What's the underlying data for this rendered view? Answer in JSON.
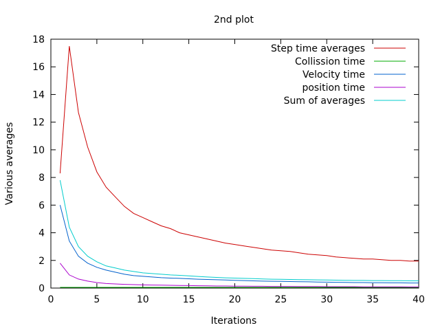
{
  "chart_data": {
    "type": "line",
    "title": "2nd plot",
    "xlabel": "Iterations",
    "ylabel": "Various averages",
    "xlim": [
      0,
      40
    ],
    "ylim": [
      0,
      18
    ],
    "xticks": [
      0,
      5,
      10,
      15,
      20,
      25,
      30,
      35,
      40
    ],
    "yticks": [
      0,
      2,
      4,
      6,
      8,
      10,
      12,
      14,
      16,
      18
    ],
    "legend_position": "top-right",
    "grid": false,
    "x": [
      1,
      2,
      3,
      4,
      5,
      6,
      7,
      8,
      9,
      10,
      11,
      12,
      13,
      14,
      15,
      16,
      17,
      18,
      19,
      20,
      21,
      22,
      23,
      24,
      25,
      26,
      27,
      28,
      29,
      30,
      31,
      32,
      33,
      34,
      35,
      36,
      37,
      38,
      39,
      40
    ],
    "series": [
      {
        "name": "Step time averages",
        "color": "#cc0000",
        "values": [
          8.3,
          17.5,
          12.7,
          10.2,
          8.4,
          7.3,
          6.6,
          5.9,
          5.4,
          5.1,
          4.8,
          4.5,
          4.3,
          4.0,
          3.85,
          3.7,
          3.55,
          3.4,
          3.25,
          3.15,
          3.05,
          2.95,
          2.85,
          2.75,
          2.7,
          2.65,
          2.55,
          2.45,
          2.4,
          2.35,
          2.25,
          2.2,
          2.15,
          2.1,
          2.1,
          2.05,
          2.0,
          2.0,
          1.95,
          1.95
        ]
      },
      {
        "name": "Collission time",
        "color": "#00aa00",
        "values": [
          0.05,
          0.05,
          0.05,
          0.05,
          0.05,
          0.05,
          0.05,
          0.05,
          0.05,
          0.05,
          0.05,
          0.05,
          0.05,
          0.05,
          0.05,
          0.05,
          0.05,
          0.05,
          0.05,
          0.05,
          0.05,
          0.05,
          0.05,
          0.05,
          0.05,
          0.05,
          0.05,
          0.05,
          0.05,
          0.05,
          0.05,
          0.05,
          0.05,
          0.05,
          0.05,
          0.05,
          0.05,
          0.05,
          0.05,
          0.05
        ]
      },
      {
        "name": "Velocity time",
        "color": "#0060cc",
        "values": [
          6.0,
          3.4,
          2.3,
          1.8,
          1.5,
          1.3,
          1.15,
          1.0,
          0.9,
          0.85,
          0.8,
          0.75,
          0.72,
          0.7,
          0.67,
          0.64,
          0.62,
          0.6,
          0.58,
          0.56,
          0.54,
          0.52,
          0.5,
          0.49,
          0.48,
          0.47,
          0.46,
          0.45,
          0.44,
          0.43,
          0.42,
          0.41,
          0.4,
          0.4,
          0.39,
          0.39,
          0.38,
          0.38,
          0.37,
          0.37
        ]
      },
      {
        "name": "position time",
        "color": "#aa00cc",
        "values": [
          1.8,
          0.95,
          0.65,
          0.5,
          0.4,
          0.33,
          0.3,
          0.27,
          0.25,
          0.23,
          0.22,
          0.21,
          0.2,
          0.19,
          0.18,
          0.17,
          0.16,
          0.15,
          0.15,
          0.14,
          0.14,
          0.13,
          0.13,
          0.12,
          0.12,
          0.12,
          0.11,
          0.11,
          0.11,
          0.1,
          0.1,
          0.1,
          0.1,
          0.09,
          0.09,
          0.09,
          0.09,
          0.09,
          0.08,
          0.08
        ]
      },
      {
        "name": "Sum of averages",
        "color": "#00cccc",
        "values": [
          7.8,
          4.4,
          3.0,
          2.3,
          1.9,
          1.6,
          1.45,
          1.3,
          1.2,
          1.1,
          1.05,
          1.0,
          0.95,
          0.92,
          0.88,
          0.84,
          0.8,
          0.77,
          0.74,
          0.72,
          0.7,
          0.68,
          0.66,
          0.64,
          0.63,
          0.62,
          0.61,
          0.6,
          0.59,
          0.58,
          0.57,
          0.56,
          0.55,
          0.55,
          0.54,
          0.54,
          0.53,
          0.53,
          0.52,
          0.52
        ]
      }
    ]
  }
}
